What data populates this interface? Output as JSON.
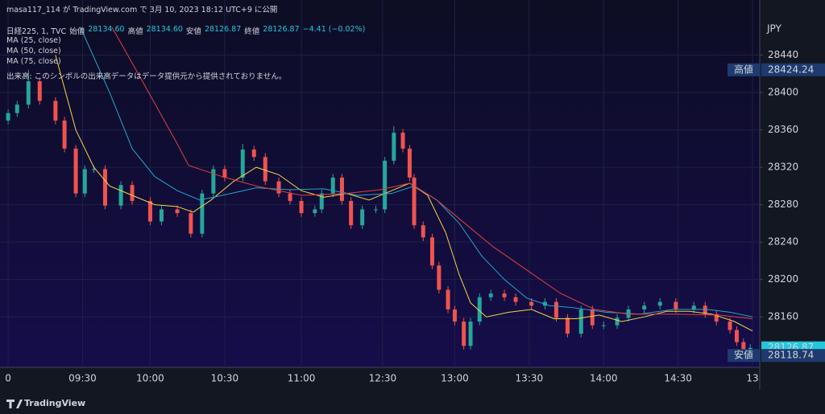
{
  "header": {
    "publisher": "masa117_114 が TradingView.com で 3月 10, 2023 18:12 UTC+9 に公開",
    "symbol": "日経225, 1, TVC",
    "ohlc": [
      {
        "label": "始値",
        "value": "28134.60"
      },
      {
        "label": "高値",
        "value": "28134.60"
      },
      {
        "label": "安値",
        "value": "28126.87"
      },
      {
        "label": "終値",
        "value": "28126.87"
      }
    ],
    "change": "−4.41 (−0.02%)",
    "volume_note": "出来高: このシンボルの出来高データはデータ提供元から提供されておりません。"
  },
  "footer": {
    "brand": "TradingView"
  },
  "chart_data": {
    "type": "candlestick",
    "currency": "JPY",
    "up_color": "#26a69a",
    "down_color": "#ef5350",
    "x": [
      0,
      4,
      9,
      14,
      21,
      25,
      30,
      34,
      38,
      43,
      50,
      55,
      63,
      68,
      75,
      81,
      86,
      91,
      96,
      104,
      109,
      114,
      120,
      125,
      130,
      136,
      139,
      144,
      148,
      152,
      157,
      163,
      167,
      171,
      175,
      178,
      180,
      184,
      188,
      191,
      195,
      198,
      202,
      205,
      209,
      214,
      220,
      225,
      232,
      238,
      243,
      248,
      254,
      259,
      264,
      270,
      275,
      282,
      289,
      296,
      304,
      309,
      314,
      320,
      323,
      326,
      329
    ],
    "open": [
      28370,
      28378,
      28387,
      28412,
      28391,
      28370,
      28340,
      28292,
      28318,
      28318,
      28279,
      28301,
      28284,
      28262,
      28275,
      28271,
      28249,
      28292,
      28318,
      28309,
      28339,
      28331,
      28305,
      28292,
      28284,
      28271,
      28275,
      28292,
      28309,
      28284,
      28258,
      28275,
      28275,
      28327,
      28357,
      28340,
      28309,
      28258,
      28245,
      28215,
      28189,
      28168,
      28155,
      28129,
      28155,
      28181,
      28185,
      28181,
      28176,
      28172,
      28176,
      28159,
      28142,
      28168,
      28151,
      28151,
      28159,
      28168,
      28172,
      28176,
      28168,
      28172,
      28163,
      28155,
      28146,
      28133,
      28122
    ],
    "high": [
      28382,
      28391,
      28424.24,
      28416,
      28395,
      28374,
      28344,
      28322,
      28322,
      28322,
      28305,
      28305,
      28288,
      28279,
      28279,
      28275,
      28296,
      28322,
      28322,
      28345,
      28343,
      28335,
      28309,
      28296,
      28288,
      28279,
      28296,
      28313,
      28313,
      28288,
      28279,
      28279,
      28331,
      28364,
      28361,
      28344,
      28313,
      28262,
      28249,
      28219,
      28193,
      28172,
      28159,
      28159,
      28185,
      28189,
      28189,
      28185,
      28180,
      28180,
      28180,
      28163,
      28172,
      28172,
      28155,
      28163,
      28172,
      28176,
      28180,
      28180,
      28176,
      28176,
      28167,
      28159,
      28150,
      28137,
      28131
    ],
    "low": [
      28366,
      28374,
      28383,
      28387,
      28366,
      28336,
      28288,
      28288,
      28314,
      28275,
      28275,
      28280,
      28258,
      28258,
      28267,
      28245,
      28245,
      28288,
      28305,
      28305,
      28327,
      28301,
      28288,
      28280,
      28267,
      28267,
      28271,
      28288,
      28280,
      28254,
      28254,
      28271,
      28271,
      28323,
      28336,
      28305,
      28254,
      28241,
      28211,
      28185,
      28164,
      28151,
      28125,
      28125,
      28151,
      28177,
      28177,
      28172,
      28168,
      28168,
      28155,
      28138,
      28138,
      28147,
      28147,
      28147,
      28155,
      28164,
      28168,
      28164,
      28164,
      28159,
      28151,
      28142,
      28129,
      28118.74,
      28120
    ],
    "close": [
      28378,
      28387,
      28412,
      28391,
      28370,
      28340,
      28292,
      28318,
      28318,
      28279,
      28301,
      28284,
      28262,
      28275,
      28271,
      28249,
      28292,
      28318,
      28309,
      28339,
      28331,
      28305,
      28292,
      28284,
      28271,
      28275,
      28292,
      28309,
      28284,
      28258,
      28275,
      28275,
      28327,
      28357,
      28340,
      28309,
      28258,
      28245,
      28215,
      28189,
      28168,
      28155,
      28129,
      28155,
      28181,
      28185,
      28181,
      28176,
      28172,
      28176,
      28159,
      28142,
      28168,
      28151,
      28151,
      28159,
      28168,
      28172,
      28176,
      28168,
      28172,
      28163,
      28155,
      28146,
      28133,
      28122,
      28126.87
    ],
    "series": [
      {
        "name": "MA (25, close)",
        "color": "#f5d547",
        "x": [
          21,
          30,
          38,
          45,
          55,
          65,
          75,
          82,
          90,
          100,
          110,
          120,
          130,
          140,
          150,
          160,
          170,
          178,
          186,
          194,
          200,
          205,
          212,
          222,
          232,
          242,
          252,
          262,
          272,
          282,
          292,
          302,
          312,
          322,
          330
        ],
        "values": [
          28440,
          28360,
          28320,
          28300,
          28290,
          28280,
          28278,
          28272,
          28285,
          28305,
          28320,
          28312,
          28295,
          28288,
          28292,
          28285,
          28295,
          28303,
          28290,
          28250,
          28205,
          28175,
          28160,
          28165,
          28168,
          28158,
          28158,
          28162,
          28155,
          28160,
          28166,
          28166,
          28163,
          28155,
          28145
        ]
      },
      {
        "name": "MA (50, close)",
        "color": "#26a6c9",
        "x": [
          32,
          45,
          55,
          65,
          75,
          85,
          95,
          110,
          125,
          140,
          155,
          170,
          180,
          190,
          200,
          210,
          220,
          230,
          240,
          250,
          265,
          280,
          295,
          310,
          320,
          330
        ],
        "values": [
          28470,
          28400,
          28340,
          28310,
          28295,
          28285,
          28290,
          28298,
          28296,
          28297,
          28290,
          28292,
          28300,
          28285,
          28260,
          28225,
          28200,
          28180,
          28172,
          28170,
          28165,
          28163,
          28168,
          28168,
          28165,
          28160
        ]
      },
      {
        "name": "MA (75, close)",
        "color": "#e0413f",
        "x": [
          46,
          60,
          75,
          80,
          95,
          110,
          130,
          150,
          165,
          178,
          190,
          200,
          215,
          230,
          245,
          260,
          275,
          295,
          315,
          330
        ],
        "values": [
          28470,
          28410,
          28345,
          28322,
          28310,
          28300,
          28290,
          28292,
          28296,
          28303,
          28285,
          28265,
          28235,
          28210,
          28185,
          28168,
          28163,
          28163,
          28162,
          28158
        ]
      }
    ],
    "xlim": [
      -3.6,
      333.2
    ],
    "xticks": [
      0,
      {
        "value": 33,
        "label": "09:30"
      },
      {
        "value": 63,
        "label": "10:00"
      },
      {
        "value": 96,
        "label": "10:30"
      },
      {
        "value": 130,
        "label": "11:00"
      },
      {
        "value": 166,
        "label": "12:30"
      },
      {
        "value": 198,
        "label": "13:00"
      },
      {
        "value": 231,
        "label": "13:30"
      },
      {
        "value": 264,
        "label": "14:00"
      },
      {
        "value": 297,
        "label": "14:30"
      },
      {
        "value": 330,
        "label": "13"
      }
    ],
    "ylim": [
      28106,
      28480
    ],
    "yticks": [
      28160,
      28200,
      28240,
      28280,
      28320,
      28360,
      28400,
      28440
    ],
    "grid": true,
    "price_badges": [
      {
        "label": "高値",
        "value": 28424.24,
        "color": "#1e3a6e"
      },
      {
        "value": 28126.87,
        "color": "#26c6da"
      },
      {
        "label": "安値",
        "value": 28118.74,
        "color": "#1e3a6e"
      }
    ]
  }
}
